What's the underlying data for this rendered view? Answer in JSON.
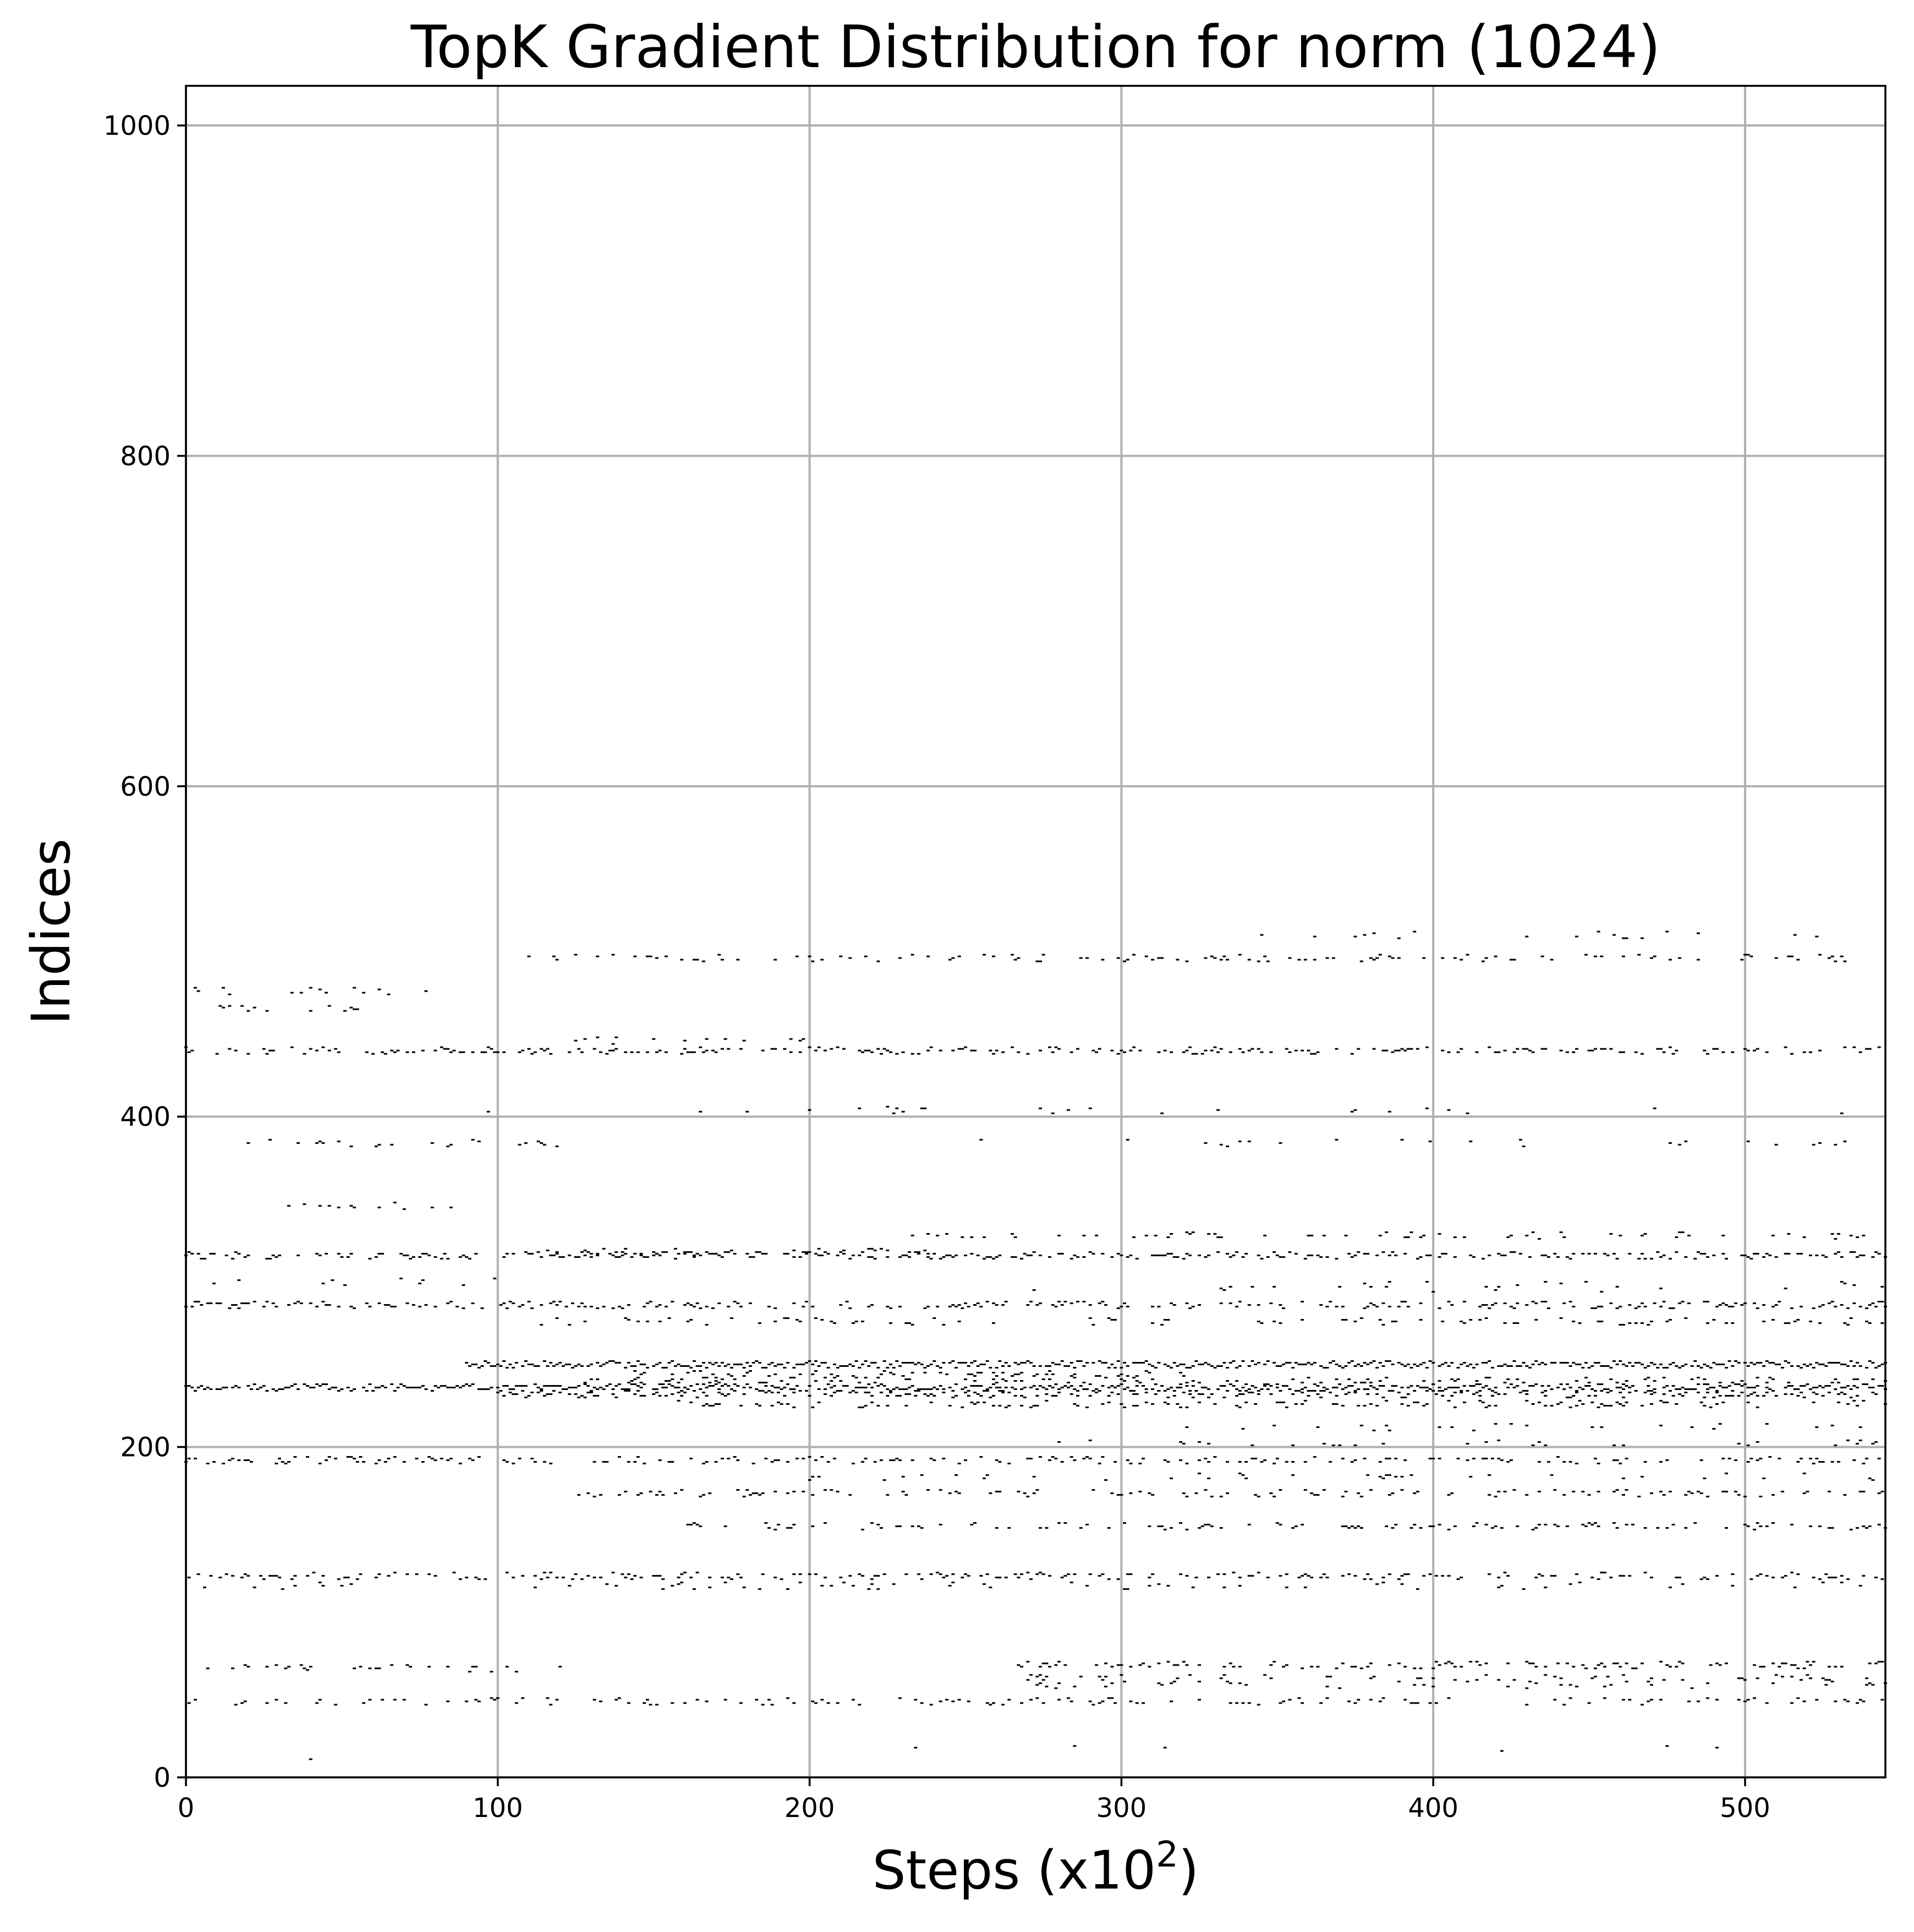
{
  "chart_data": {
    "type": "scatter",
    "title": "TopK Gradient Distribution for norm (1024)",
    "xlabel": {
      "text": "Steps (x10",
      "superscript": "2",
      "suffix": ")"
    },
    "ylabel": "Indices",
    "xlim": [
      0,
      545
    ],
    "ylim": [
      0,
      1024
    ],
    "grid": true,
    "x_ticks": [
      0,
      100,
      200,
      300,
      400,
      500
    ],
    "y_ticks": [
      0,
      200,
      400,
      600,
      800,
      1000
    ],
    "x_tick_labels": [
      "0",
      "100",
      "200",
      "300",
      "400",
      "500"
    ],
    "y_tick_labels": [
      "0",
      "200",
      "400",
      "600",
      "800",
      "1000"
    ],
    "marker": "short black horizontal dash",
    "point_color": "#000000",
    "bands": [
      {
        "index": 236,
        "x_range": [
          0,
          545
        ],
        "density": 0.85
      },
      {
        "index": 250,
        "x_range": [
          90,
          545
        ],
        "density": 0.9
      },
      {
        "index": 232,
        "x_range": [
          100,
          545
        ],
        "density": 0.55
      },
      {
        "index": 226,
        "x_range": [
          150,
          545
        ],
        "density": 0.35
      },
      {
        "index": 240,
        "x_range": [
          120,
          545
        ],
        "density": 0.3
      },
      {
        "index": 244,
        "x_range": [
          140,
          320
        ],
        "density": 0.25
      },
      {
        "index": 316,
        "x_range": [
          0,
          545
        ],
        "density": 0.55
      },
      {
        "index": 318,
        "x_range": [
          110,
          240
        ],
        "density": 0.35
      },
      {
        "index": 328,
        "x_range": [
          225,
          545
        ],
        "density": 0.18
      },
      {
        "index": 286,
        "x_range": [
          0,
          545
        ],
        "density": 0.45
      },
      {
        "index": 276,
        "x_range": [
          100,
          545
        ],
        "density": 0.22
      },
      {
        "index": 440,
        "x_range": [
          0,
          545
        ],
        "density": 0.45
      },
      {
        "index": 446,
        "x_range": [
          110,
          200
        ],
        "density": 0.15
      },
      {
        "index": 496,
        "x_range": [
          110,
          545
        ],
        "density": 0.28
      },
      {
        "index": 510,
        "x_range": [
          300,
          545
        ],
        "density": 0.06
      },
      {
        "index": 192,
        "x_range": [
          0,
          545
        ],
        "density": 0.35
      },
      {
        "index": 172,
        "x_range": [
          120,
          545
        ],
        "density": 0.3
      },
      {
        "index": 152,
        "x_range": [
          160,
          545
        ],
        "density": 0.3
      },
      {
        "index": 182,
        "x_range": [
          200,
          545
        ],
        "density": 0.12
      },
      {
        "index": 202,
        "x_range": [
          280,
          545
        ],
        "density": 0.1
      },
      {
        "index": 212,
        "x_range": [
          300,
          545
        ],
        "density": 0.12
      },
      {
        "index": 122,
        "x_range": [
          0,
          545
        ],
        "density": 0.4
      },
      {
        "index": 116,
        "x_range": [
          0,
          545
        ],
        "density": 0.12
      },
      {
        "index": 66,
        "x_range": [
          0,
          130
        ],
        "density": 0.2
      },
      {
        "index": 68,
        "x_range": [
          265,
          545
        ],
        "density": 0.45
      },
      {
        "index": 60,
        "x_range": [
          270,
          545
        ],
        "density": 0.18
      },
      {
        "index": 46,
        "x_range": [
          0,
          545
        ],
        "density": 0.25
      },
      {
        "index": 56,
        "x_range": [
          260,
          545
        ],
        "density": 0.1
      },
      {
        "index": 384,
        "x_range": [
          0,
          120
        ],
        "density": 0.22
      },
      {
        "index": 384,
        "x_range": [
          250,
          545
        ],
        "density": 0.08
      },
      {
        "index": 404,
        "x_range": [
          60,
          545
        ],
        "density": 0.06
      },
      {
        "index": 476,
        "x_range": [
          0,
          80
        ],
        "density": 0.2
      },
      {
        "index": 466,
        "x_range": [
          0,
          60
        ],
        "density": 0.2
      },
      {
        "index": 18,
        "x_range": [
          220,
          545
        ],
        "density": 0.03
      },
      {
        "index": 12,
        "x_range": [
          20,
          45
        ],
        "density": 0.1
      },
      {
        "index": 346,
        "x_range": [
          30,
          90
        ],
        "density": 0.1
      },
      {
        "index": 300,
        "x_range": [
          0,
          110
        ],
        "density": 0.1
      },
      {
        "index": 296,
        "x_range": [
          260,
          545
        ],
        "density": 0.05
      },
      {
        "index": 298,
        "x_range": [
          340,
          545
        ],
        "density": 0.05
      }
    ]
  }
}
